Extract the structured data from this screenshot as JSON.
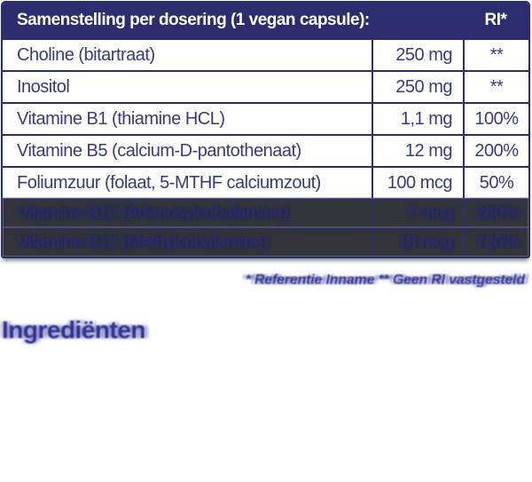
{
  "table": {
    "header": {
      "title": "Samenstelling per dosering (1 vegan capsule):",
      "ri_label": "RI*"
    },
    "rows": [
      {
        "name": "Choline (bitartraat)",
        "amount": "250 mg",
        "ri": "**",
        "ghost": false
      },
      {
        "name": "Inositol",
        "amount": "250 mg",
        "ri": "**",
        "ghost": false
      },
      {
        "name": "Vitamine B1 (thiamine HCL)",
        "amount": "1,1 mg",
        "ri": "100%",
        "ghost": false
      },
      {
        "name": "Vitamine B5 (calcium-D-pantothenaat)",
        "amount": "12 mg",
        "ri": "200%",
        "ghost": false
      },
      {
        "name": "Foliumzuur (folaat, 5-MTHF calciumzout)",
        "amount": "100 mcg",
        "ri": "50%",
        "ghost": false
      },
      {
        "name": "Vitamine B12 (Adenosylcobalamine)",
        "amount": "7 mcg",
        "ri": "280%",
        "ghost": true
      },
      {
        "name": "Vitamine B12 (Methylcobalamine)",
        "amount": "18 mcg",
        "ri": "720%",
        "ghost": true
      }
    ]
  },
  "footnote": "* Referentie Inname ** Geen RI vastgesteld",
  "section_heading": "Ingrediënten",
  "colors": {
    "navy": "#2b2d6e",
    "row_text": "#373a7c",
    "accent_blue": "#2e3192",
    "ghost_row_bg": "#33343a",
    "background": "#ffffff"
  }
}
